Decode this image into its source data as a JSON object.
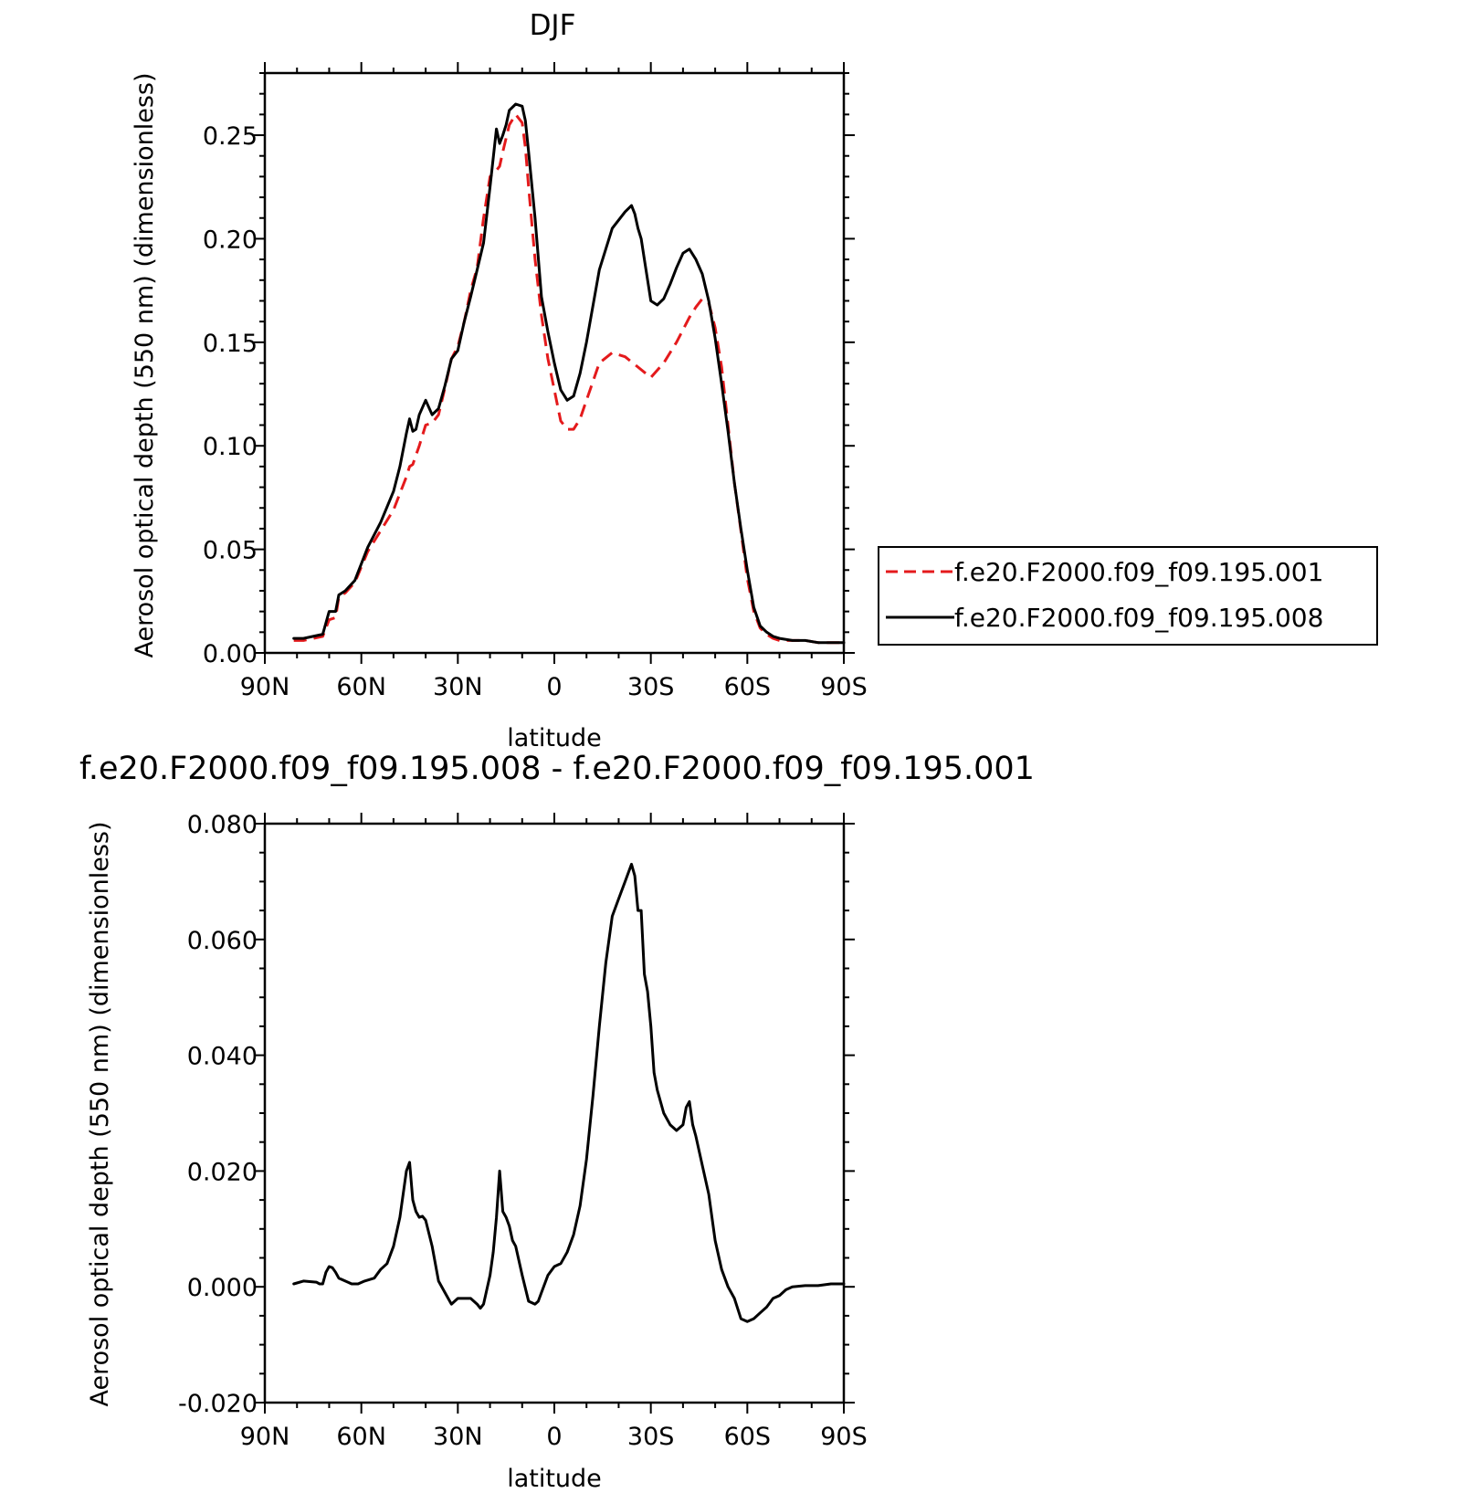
{
  "chart_data": [
    {
      "type": "line",
      "title": "DJF",
      "xlabel": "latitude",
      "ylabel": "Aerosol optical depth (550 nm) (dimensionless)",
      "xlim": [
        90,
        -90
      ],
      "ylim": [
        0.0,
        0.28
      ],
      "xticks": [
        90,
        60,
        30,
        0,
        -30,
        -60,
        -90
      ],
      "xtick_labels": [
        "90N",
        "60N",
        "30N",
        "0",
        "30S",
        "60S",
        "90S"
      ],
      "yticks": [
        0.0,
        0.05,
        0.1,
        0.15,
        0.2,
        0.25
      ],
      "ytick_labels": [
        "0.00",
        "0.05",
        "0.10",
        "0.15",
        "0.20",
        "0.25"
      ],
      "grid": false,
      "legend": "outside-right",
      "series": [
        {
          "name": "f.e20.F2000.f09_f09.195.001",
          "color": "#e41a1c",
          "dash": "dashed",
          "x": [
            81,
            78,
            72,
            70,
            68,
            67,
            65,
            62,
            58,
            54,
            50,
            48,
            46,
            45,
            44,
            42,
            40,
            38,
            36,
            34,
            32,
            30,
            28,
            26,
            24,
            22,
            20,
            18,
            17,
            16,
            14,
            12,
            10,
            9,
            8,
            6,
            4,
            2,
            0,
            -2,
            -4,
            -6,
            -8,
            -10,
            -14,
            -18,
            -22,
            -26,
            -30,
            -34,
            -38,
            -42,
            -44,
            -46,
            -48,
            -50,
            -52,
            -54,
            -56,
            -58,
            -60,
            -62,
            -64,
            -66,
            -68,
            -70,
            -74,
            -78,
            -82,
            -86,
            -90
          ],
          "y": [
            0.006,
            0.006,
            0.008,
            0.016,
            0.017,
            0.027,
            0.029,
            0.034,
            0.049,
            0.059,
            0.069,
            0.077,
            0.085,
            0.09,
            0.091,
            0.1,
            0.11,
            0.111,
            0.115,
            0.128,
            0.142,
            0.148,
            0.16,
            0.175,
            0.186,
            0.21,
            0.23,
            0.233,
            0.235,
            0.242,
            0.255,
            0.26,
            0.256,
            0.244,
            0.225,
            0.19,
            0.163,
            0.142,
            0.127,
            0.112,
            0.108,
            0.108,
            0.113,
            0.122,
            0.14,
            0.145,
            0.143,
            0.138,
            0.133,
            0.14,
            0.15,
            0.162,
            0.167,
            0.171,
            0.169,
            0.157,
            0.138,
            0.11,
            0.082,
            0.059,
            0.036,
            0.02,
            0.012,
            0.009,
            0.007,
            0.006,
            0.006,
            0.006,
            0.005,
            0.005,
            0.005
          ]
        },
        {
          "name": "f.e20.F2000.f09_f09.195.008",
          "color": "#000000",
          "dash": "solid",
          "x": [
            81,
            78,
            72,
            70,
            68,
            67,
            65,
            62,
            58,
            54,
            50,
            48,
            46,
            45,
            44,
            43,
            42,
            40,
            38,
            36,
            34,
            32,
            30,
            28,
            26,
            24,
            22,
            20,
            18,
            17,
            16,
            15,
            14,
            12,
            10,
            9,
            8,
            6,
            4,
            2,
            0,
            -2,
            -4,
            -6,
            -8,
            -10,
            -14,
            -18,
            -22,
            -24,
            -25,
            -26,
            -27,
            -28,
            -30,
            -32,
            -34,
            -36,
            -38,
            -40,
            -42,
            -44,
            -46,
            -48,
            -50,
            -52,
            -54,
            -56,
            -58,
            -60,
            -62,
            -64,
            -66,
            -68,
            -70,
            -74,
            -78,
            -82,
            -86,
            -90
          ],
          "y": [
            0.007,
            0.007,
            0.009,
            0.02,
            0.02,
            0.028,
            0.03,
            0.035,
            0.051,
            0.063,
            0.078,
            0.09,
            0.106,
            0.113,
            0.107,
            0.108,
            0.115,
            0.122,
            0.115,
            0.118,
            0.129,
            0.142,
            0.146,
            0.16,
            0.172,
            0.185,
            0.198,
            0.225,
            0.253,
            0.246,
            0.25,
            0.255,
            0.262,
            0.265,
            0.264,
            0.257,
            0.242,
            0.21,
            0.172,
            0.155,
            0.14,
            0.127,
            0.122,
            0.124,
            0.135,
            0.15,
            0.185,
            0.205,
            0.213,
            0.216,
            0.212,
            0.205,
            0.2,
            0.19,
            0.17,
            0.168,
            0.171,
            0.178,
            0.186,
            0.193,
            0.195,
            0.19,
            0.183,
            0.17,
            0.152,
            0.13,
            0.107,
            0.082,
            0.06,
            0.04,
            0.022,
            0.013,
            0.01,
            0.008,
            0.007,
            0.006,
            0.006,
            0.005,
            0.005,
            0.005
          ]
        }
      ]
    },
    {
      "type": "line",
      "title": "f.e20.F2000.f09_f09.195.008 - f.e20.F2000.f09_f09.195.001",
      "xlabel": "latitude",
      "ylabel": "Aerosol optical depth (550 nm) (dimensionless)",
      "xlim": [
        90,
        -90
      ],
      "ylim": [
        -0.02,
        0.08
      ],
      "xticks": [
        90,
        60,
        30,
        0,
        -30,
        -60,
        -90
      ],
      "xtick_labels": [
        "90N",
        "60N",
        "30N",
        "0",
        "30S",
        "60S",
        "90S"
      ],
      "yticks": [
        -0.02,
        0.0,
        0.02,
        0.04,
        0.06,
        0.08
      ],
      "ytick_labels": [
        "-0.020",
        "0.000",
        "0.020",
        "0.040",
        "0.060",
        "0.080"
      ],
      "grid": false,
      "legend": "none",
      "series": [
        {
          "color": "#000000",
          "dash": "solid",
          "x": [
            81,
            78,
            74,
            73,
            72,
            71,
            70,
            69,
            68,
            67,
            65,
            63,
            61,
            59,
            56,
            54,
            52,
            50,
            48,
            46,
            45,
            44,
            43,
            42,
            41,
            40,
            38,
            36,
            34,
            32,
            30,
            28,
            26,
            24,
            23,
            22,
            20,
            19,
            18,
            17,
            16,
            15,
            14,
            13,
            12,
            10,
            8,
            6,
            5,
            4,
            2,
            0,
            -2,
            -4,
            -6,
            -8,
            -10,
            -12,
            -14,
            -16,
            -18,
            -20,
            -22,
            -24,
            -25,
            -26,
            -27,
            -28,
            -29,
            -30,
            -31,
            -32,
            -34,
            -36,
            -38,
            -40,
            -41,
            -42,
            -43,
            -44,
            -46,
            -48,
            -50,
            -52,
            -54,
            -56,
            -58,
            -60,
            -62,
            -64,
            -66,
            -68,
            -70,
            -72,
            -74,
            -78,
            -82,
            -86,
            -90
          ],
          "y": [
            0.0005,
            0.001,
            0.0008,
            0.0005,
            0.0005,
            0.0025,
            0.0035,
            0.0033,
            0.0025,
            0.0015,
            0.001,
            0.0005,
            0.0005,
            0.001,
            0.0015,
            0.003,
            0.004,
            0.007,
            0.012,
            0.02,
            0.0215,
            0.015,
            0.013,
            0.012,
            0.0122,
            0.0115,
            0.007,
            0.001,
            -0.001,
            -0.003,
            -0.002,
            -0.002,
            -0.002,
            -0.003,
            -0.0037,
            -0.003,
            0.002,
            0.006,
            0.012,
            0.02,
            0.013,
            0.012,
            0.0105,
            0.008,
            0.007,
            0.002,
            -0.0025,
            -0.003,
            -0.0025,
            -0.001,
            0.002,
            0.0035,
            0.004,
            0.006,
            0.009,
            0.014,
            0.022,
            0.033,
            0.045,
            0.056,
            0.064,
            0.067,
            0.07,
            0.073,
            0.071,
            0.065,
            0.065,
            0.054,
            0.051,
            0.045,
            0.037,
            0.034,
            0.03,
            0.028,
            0.027,
            0.028,
            0.031,
            0.032,
            0.028,
            0.026,
            0.021,
            0.016,
            0.008,
            0.003,
            0.0,
            -0.002,
            -0.0055,
            -0.006,
            -0.0055,
            -0.0045,
            -0.0035,
            -0.002,
            -0.0015,
            -0.0005,
            0.0,
            0.0002,
            0.0002,
            0.0005,
            0.0005
          ]
        }
      ]
    }
  ]
}
